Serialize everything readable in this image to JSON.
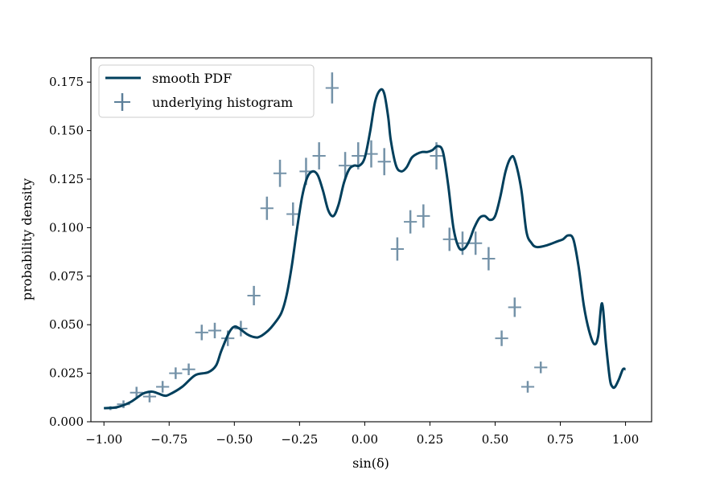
{
  "chart_data": {
    "type": "line",
    "title": "",
    "xlabel": "sin(δ)",
    "ylabel": "probability density",
    "xlim": [
      -1.05,
      1.1
    ],
    "ylim": [
      0.0,
      0.1875
    ],
    "x_ticks": [
      -1.0,
      -0.75,
      -0.5,
      -0.25,
      0.0,
      0.25,
      0.5,
      0.75,
      1.0
    ],
    "x_tick_labels": [
      "−1.00",
      "−0.75",
      "−0.50",
      "−0.25",
      "0.00",
      "0.25",
      "0.50",
      "0.75",
      "1.00"
    ],
    "y_ticks": [
      0.0,
      0.025,
      0.05,
      0.075,
      0.1,
      0.125,
      0.15,
      0.175
    ],
    "y_tick_labels": [
      "0.000",
      "0.025",
      "0.050",
      "0.075",
      "0.100",
      "0.125",
      "0.150",
      "0.175"
    ],
    "grid": false,
    "legend_position": "upper-left",
    "colors": {
      "pdf": "#003f5c",
      "histogram": "#5c7f99"
    },
    "series": [
      {
        "name": "smooth PDF",
        "style": "line",
        "x": [
          -1.0,
          -0.95,
          -0.9,
          -0.85,
          -0.82,
          -0.8,
          -0.77,
          -0.75,
          -0.7,
          -0.65,
          -0.6,
          -0.57,
          -0.55,
          -0.52,
          -0.5,
          -0.48,
          -0.45,
          -0.42,
          -0.4,
          -0.37,
          -0.35,
          -0.32,
          -0.3,
          -0.28,
          -0.26,
          -0.24,
          -0.22,
          -0.2,
          -0.18,
          -0.16,
          -0.14,
          -0.12,
          -0.1,
          -0.08,
          -0.06,
          -0.04,
          -0.02,
          0.0,
          0.02,
          0.04,
          0.06,
          0.075,
          0.09,
          0.1,
          0.12,
          0.14,
          0.16,
          0.18,
          0.2,
          0.22,
          0.24,
          0.26,
          0.28,
          0.3,
          0.32,
          0.34,
          0.36,
          0.38,
          0.4,
          0.42,
          0.44,
          0.46,
          0.48,
          0.5,
          0.52,
          0.54,
          0.56,
          0.575,
          0.6,
          0.62,
          0.64,
          0.66,
          0.7,
          0.74,
          0.76,
          0.78,
          0.8,
          0.82,
          0.84,
          0.86,
          0.88,
          0.895,
          0.91,
          0.925,
          0.94,
          0.95,
          0.96,
          0.975,
          0.99,
          1.0
        ],
        "y": [
          0.007,
          0.0075,
          0.01,
          0.0145,
          0.0155,
          0.015,
          0.0135,
          0.014,
          0.018,
          0.024,
          0.0255,
          0.029,
          0.0365,
          0.046,
          0.049,
          0.048,
          0.045,
          0.0435,
          0.044,
          0.047,
          0.05,
          0.056,
          0.065,
          0.08,
          0.099,
          0.116,
          0.126,
          0.129,
          0.127,
          0.119,
          0.109,
          0.106,
          0.112,
          0.123,
          0.13,
          0.132,
          0.132,
          0.136,
          0.149,
          0.165,
          0.171,
          0.169,
          0.157,
          0.145,
          0.132,
          0.129,
          0.131,
          0.136,
          0.138,
          0.139,
          0.139,
          0.14,
          0.142,
          0.139,
          0.122,
          0.1,
          0.09,
          0.089,
          0.093,
          0.1,
          0.105,
          0.106,
          0.104,
          0.106,
          0.116,
          0.129,
          0.136,
          0.135,
          0.12,
          0.098,
          0.092,
          0.09,
          0.091,
          0.093,
          0.094,
          0.096,
          0.094,
          0.08,
          0.06,
          0.047,
          0.04,
          0.044,
          0.061,
          0.04,
          0.022,
          0.018,
          0.018,
          0.022,
          0.027,
          0.027
        ]
      },
      {
        "name": "underlying histogram",
        "style": "errorbar",
        "x": [
          -0.975,
          -0.925,
          -0.875,
          -0.825,
          -0.775,
          -0.725,
          -0.675,
          -0.625,
          -0.575,
          -0.525,
          -0.475,
          -0.425,
          -0.375,
          -0.325,
          -0.275,
          -0.225,
          -0.175,
          -0.125,
          -0.075,
          -0.025,
          0.025,
          0.075,
          0.125,
          0.175,
          0.225,
          0.275,
          0.325,
          0.375,
          0.425,
          0.475,
          0.525,
          0.575,
          0.625,
          0.675,
          0.725,
          0.775,
          0.825,
          0.875,
          0.925,
          0.975
        ],
        "y": [
          0.007,
          0.009,
          0.015,
          0.013,
          0.018,
          0.025,
          0.027,
          0.046,
          0.047,
          0.043,
          0.048,
          0.065,
          0.11,
          0.128,
          0.107,
          0.129,
          0.137,
          0.172,
          0.132,
          0.137,
          0.138,
          0.134,
          0.089,
          0.103,
          0.106,
          0.137,
          0.094,
          0.092,
          0.092,
          0.084,
          0.043,
          0.059,
          0.018,
          0.028,
          0.0,
          0.0,
          0.0,
          0.0,
          0.0,
          0.0
        ],
        "yerr": [
          0.001,
          0.002,
          0.003,
          0.003,
          0.003,
          0.003,
          0.003,
          0.004,
          0.004,
          0.004,
          0.004,
          0.005,
          0.006,
          0.007,
          0.006,
          0.007,
          0.007,
          0.008,
          0.007,
          0.007,
          0.007,
          0.007,
          0.006,
          0.006,
          0.006,
          0.007,
          0.006,
          0.006,
          0.006,
          0.006,
          0.004,
          0.005,
          0.003,
          0.003,
          0.0,
          0.0,
          0.0,
          0.0,
          0.0,
          0.0
        ]
      }
    ]
  }
}
